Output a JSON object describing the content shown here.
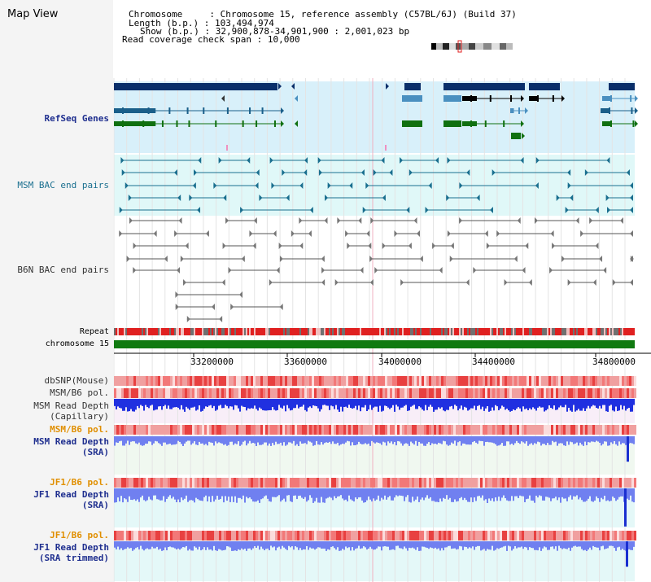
{
  "view_title": "Map View",
  "info": {
    "chromosome_label": "Chromosome",
    "chromosome_value": "Chromosome 15, reference assembly (C57BL/6J) (Build 37)",
    "length_label": "Length (b.p.)",
    "length_value": "103,494,974",
    "show_label": "Show (b.p.)",
    "show_value": "32,900,878-34,901,900 : 2,001,023 bp",
    "coverage_label": "Read coverage check span",
    "coverage_value": "10,000"
  },
  "tracks": {
    "refseq": "RefSeq Genes",
    "msm_bac": "MSM BAC end pairs",
    "b6n_bac": "B6N BAC end pairs",
    "repeat": "Repeat",
    "chromosome": "chromosome 15",
    "dbsnp": "dbSNP(Mouse)",
    "msm_b6_pol_1": "MSM/B6 pol.",
    "msm_read_depth_cap_1": "MSM Read Depth",
    "msm_read_depth_cap_2": "(Capillary)",
    "msm_b6_pol_2": "MSM/B6 pol.",
    "msm_read_depth_sra_1": "MSM Read Depth",
    "msm_read_depth_sra_2": "(SRA)",
    "jf1_b6_pol_1": "JF1/B6 pol.",
    "jf1_read_depth_sra_1": "JF1 Read Depth",
    "jf1_read_depth_sra_2": "(SRA)",
    "jf1_b6_pol_2": "JF1/B6 pol.",
    "jf1_read_depth_trim_1": "JF1 Read Depth",
    "jf1_read_depth_trim_2": "(SRA trimmed)"
  },
  "axis_ticks": [
    "33200000",
    "33600000",
    "34000000",
    "34400000",
    "34800000"
  ],
  "colors": {
    "refseq_bg": "#d8f0fa",
    "msm_bg": "#e0f8f8",
    "depth_bg": "#f0f8f0",
    "gene_dark": "#0a2f6a",
    "gene_mid": "#4a90c0",
    "gene_green": "#107010",
    "repeat_red": "#e02020",
    "repeat_gray": "#707070",
    "chrom_green": "#107a10",
    "depth_blue": "#2030e0",
    "depth_light": "#7080f0"
  }
}
